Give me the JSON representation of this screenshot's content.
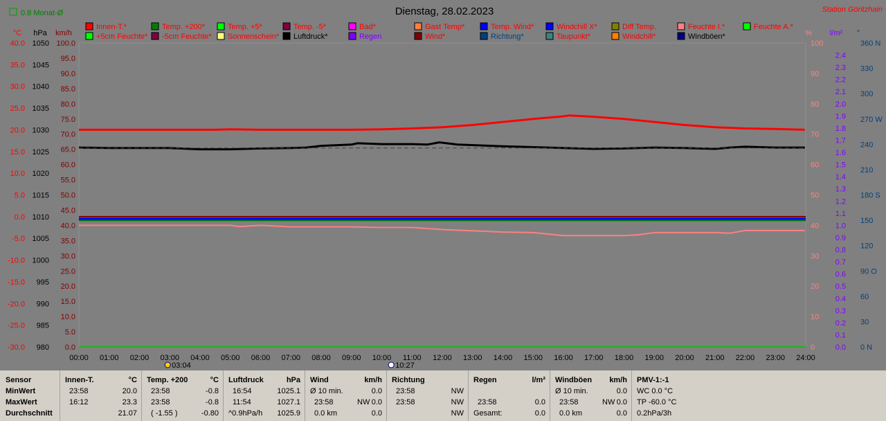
{
  "page": {
    "title": "Dienstag, 28.02.2023",
    "station": "Station Göritzhain",
    "month_avg_label": "0.8 Monat-Ø"
  },
  "colors": {
    "innen": "#ff0000",
    "temp200": "#008000",
    "temp5": "#00ff00",
    "tempm5": "#800040",
    "bad": "#ff00ff",
    "gast": "#ff8040",
    "tempwind": "#0000ff",
    "windchillx": "#0000ff",
    "difftemp": "#808000",
    "feuchtei": "#ff8080",
    "feuchtea": "#00ff00",
    "feuchte5": "#00ff00",
    "feuchtem5": "#800040",
    "sonne": "#ffff80",
    "luftdruck": "#000000",
    "regen": "#8000ff",
    "wind": "#800000",
    "richtung": "#004080",
    "taupunkt": "#408080",
    "windchill": "#ff8000",
    "windboeen": "#000080"
  },
  "legend": {
    "row1": [
      {
        "label": "Innen-T.*",
        "color": "#ff0000",
        "text": "#ff0000"
      },
      {
        "label": "Temp. +200*",
        "color": "#008000",
        "text": "#ff0000"
      },
      {
        "label": "Temp. +5*",
        "color": "#00ff00",
        "text": "#ff0000"
      },
      {
        "label": "Temp. -5*",
        "color": "#800040",
        "text": "#ff0000"
      },
      {
        "label": "Bad*",
        "color": "#ff00ff",
        "text": "#ff0000"
      },
      {
        "label": "Gast Temp*",
        "color": "#ff8040",
        "text": "#ff0000"
      },
      {
        "label": "Temp. Wind*",
        "color": "#0000ff",
        "text": "#ff0000"
      },
      {
        "label": "Windchill X*",
        "color": "#0000ff",
        "text": "#ff0000"
      },
      {
        "label": "Diff Temp.",
        "color": "#808000",
        "text": "#ff0000"
      },
      {
        "label": "Feuchte I.*",
        "color": "#ff8080",
        "text": "#ff0000"
      },
      {
        "label": "Feuchte A.*",
        "color": "#00ff00",
        "text": "#ff0000"
      }
    ],
    "row2": [
      {
        "label": "+5cm Feuchte*",
        "color": "#00ff00",
        "text": "#ff0000"
      },
      {
        "label": "-5cm Feuchte*",
        "color": "#800040",
        "text": "#ff0000"
      },
      {
        "label": "Sonnenschein*",
        "color": "#ffff80",
        "text": "#ff0000"
      },
      {
        "label": "Luftdruck*",
        "color": "#000000",
        "text": "#000000"
      },
      {
        "label": "Regen",
        "color": "#8000ff",
        "text": "#8000ff"
      },
      {
        "label": "Wind*",
        "color": "#800000",
        "text": "#ff0000"
      },
      {
        "label": "Richtung*",
        "color": "#004080",
        "text": "#004080"
      },
      {
        "label": "Taupunkt*",
        "color": "#408080",
        "text": "#ff0000"
      },
      {
        "label": "Windchill*",
        "color": "#ff8000",
        "text": "#ff0000"
      },
      {
        "label": "Windböen*",
        "color": "#000080",
        "text": "#000000"
      }
    ]
  },
  "axes": {
    "celsius_unit": "°C",
    "hpa_unit": "hPa",
    "kmh_unit": "km/h",
    "pct_unit": "%",
    "rain_unit": "l/m²",
    "deg_unit": "°",
    "celsius_ticks": [
      "40.0",
      "35.0",
      "30.0",
      "25.0",
      "20.0",
      "15.0",
      "10.0",
      "5.0",
      "0.0",
      "-5.0",
      "-10.0",
      "-15.0",
      "-20.0",
      "-25.0",
      "-30.0"
    ],
    "hpa_ticks": [
      "1050",
      "1045",
      "1040",
      "1035",
      "1030",
      "1025",
      "1020",
      "1015",
      "1010",
      "1005",
      "1000",
      "995",
      "990",
      "985",
      "980"
    ],
    "kmh_ticks": [
      "100.0",
      "95.0",
      "90.0",
      "85.0",
      "80.0",
      "75.0",
      "70.0",
      "65.0",
      "60.0",
      "55.0",
      "50.0",
      "45.0",
      "40.0",
      "35.0",
      "30.0",
      "25.0",
      "20.0",
      "15.0",
      "10.0",
      "5.0",
      "0.0"
    ],
    "pct_ticks": [
      "100",
      "90",
      "80",
      "70",
      "60",
      "50",
      "40",
      "30",
      "20",
      "10",
      "0"
    ],
    "rain_ticks": [
      "2.4",
      "2.3",
      "2.2",
      "2.1",
      "2.0",
      "1.9",
      "1.8",
      "1.7",
      "1.6",
      "1.5",
      "1.4",
      "1.3",
      "1.2",
      "1.1",
      "1.0",
      "0.9",
      "0.8",
      "0.7",
      "0.6",
      "0.5",
      "0.4",
      "0.3",
      "0.2",
      "0.1",
      "0.0"
    ],
    "deg_ticks": [
      "360 N",
      "330",
      "300",
      "270 W",
      "240",
      "210",
      "180 S",
      "150",
      "120",
      "90 O",
      "60",
      "30",
      "0   N"
    ],
    "time_ticks": [
      "00:00",
      "01:00",
      "02:00",
      "03:00",
      "04:00",
      "05:00",
      "06:00",
      "07:00",
      "08:00",
      "09:00",
      "10:00",
      "11:00",
      "12:00",
      "13:00",
      "14:00",
      "15:00",
      "16:00",
      "17:00",
      "18:00",
      "19:00",
      "20:00",
      "21:00",
      "22:00",
      "23:00",
      "24:00"
    ],
    "moon_times": [
      "03:04",
      "10:27"
    ]
  },
  "chart_data": {
    "type": "line",
    "title": "Dienstag, 28.02.2023",
    "x_unit": "hours",
    "xlim": [
      0,
      24
    ],
    "series": [
      {
        "name": "Innen-T.*",
        "axis": "celsius",
        "ylim": [
          -30,
          40
        ],
        "color": "#ff0000",
        "width": 3,
        "points": [
          [
            0,
            20.0
          ],
          [
            2,
            20.0
          ],
          [
            4.5,
            20.0
          ],
          [
            5,
            20.1
          ],
          [
            6,
            20.0
          ],
          [
            8,
            20.0
          ],
          [
            9,
            20.0
          ],
          [
            10,
            20.1
          ],
          [
            11,
            20.3
          ],
          [
            12,
            20.6
          ],
          [
            13,
            21.1
          ],
          [
            14,
            21.8
          ],
          [
            15,
            22.5
          ],
          [
            16,
            23.1
          ],
          [
            16.2,
            23.3
          ],
          [
            17,
            23.0
          ],
          [
            18,
            22.5
          ],
          [
            19,
            21.8
          ],
          [
            20,
            21.1
          ],
          [
            21,
            20.6
          ],
          [
            22,
            20.3
          ],
          [
            23,
            20.2
          ],
          [
            23.97,
            20.0
          ]
        ]
      },
      {
        "name": "Luftdruck*",
        "axis": "hpa",
        "ylim": [
          980,
          1050
        ],
        "color": "#000000",
        "width": 3,
        "points": [
          [
            0,
            1025.9
          ],
          [
            1,
            1025.8
          ],
          [
            3,
            1025.8
          ],
          [
            4,
            1025.5
          ],
          [
            5,
            1025.5
          ],
          [
            6,
            1025.7
          ],
          [
            7,
            1025.8
          ],
          [
            7.5,
            1025.9
          ],
          [
            8,
            1026.3
          ],
          [
            9,
            1026.6
          ],
          [
            9.2,
            1026.9
          ],
          [
            10,
            1026.7
          ],
          [
            11,
            1026.7
          ],
          [
            11.5,
            1026.6
          ],
          [
            11.9,
            1027.1
          ],
          [
            12.5,
            1026.6
          ],
          [
            14,
            1026.2
          ],
          [
            15,
            1026.0
          ],
          [
            16,
            1025.8
          ],
          [
            17,
            1025.6
          ],
          [
            18,
            1025.7
          ],
          [
            19,
            1025.9
          ],
          [
            20,
            1025.8
          ],
          [
            21,
            1025.6
          ],
          [
            21.5,
            1025.9
          ],
          [
            22,
            1026.1
          ],
          [
            23,
            1025.9
          ],
          [
            23.97,
            1025.9
          ]
        ]
      },
      {
        "name": "Luftdruck Trend",
        "axis": "hpa",
        "ylim": [
          980,
          1050
        ],
        "color": "#404040",
        "width": 1,
        "dashed": true,
        "points": [
          [
            0,
            1025.8
          ],
          [
            24,
            1025.8
          ]
        ]
      },
      {
        "name": "Temp. +200*",
        "axis": "celsius",
        "ylim": [
          -30,
          40
        ],
        "color": "#008000",
        "width": 3,
        "points": [
          [
            0,
            -0.8
          ],
          [
            24,
            -0.8
          ]
        ]
      },
      {
        "name": "Wind*",
        "axis": "celsius",
        "ylim": [
          -30,
          40
        ],
        "color": "#800000",
        "width": 2,
        "points": [
          [
            0,
            0.0
          ],
          [
            24,
            0.0
          ]
        ]
      },
      {
        "name": "Windchill X*",
        "axis": "celsius",
        "ylim": [
          -30,
          40
        ],
        "color": "#0000ff",
        "width": 3,
        "points": [
          [
            0,
            -0.5
          ],
          [
            24,
            -0.5
          ]
        ]
      },
      {
        "name": "Feuchte I.*",
        "axis": "pct",
        "ylim": [
          0,
          100
        ],
        "color": "#ff8080",
        "width": 2,
        "points": [
          [
            0,
            40
          ],
          [
            5,
            40
          ],
          [
            5.3,
            39.6
          ],
          [
            6,
            40
          ],
          [
            7,
            39.5
          ],
          [
            9,
            39.5
          ],
          [
            10,
            39.3
          ],
          [
            11,
            39.3
          ],
          [
            12,
            38.6
          ],
          [
            14,
            37.8
          ],
          [
            15,
            37.6
          ],
          [
            16,
            36.6
          ],
          [
            18,
            36.6
          ],
          [
            18.5,
            36.9
          ],
          [
            19,
            37.6
          ],
          [
            20,
            37.6
          ],
          [
            21,
            37.6
          ],
          [
            21.5,
            37.4
          ],
          [
            22,
            38.3
          ],
          [
            23.97,
            38.3
          ]
        ]
      },
      {
        "name": "Regen",
        "axis": "kmh",
        "ylim": [
          0,
          100
        ],
        "color": "#00c000",
        "width": 1,
        "points": [
          [
            0,
            0.1
          ],
          [
            24,
            0.1
          ]
        ]
      }
    ]
  },
  "stats": {
    "row_labels": {
      "title": "Sensor",
      "min": "MinWert",
      "max": "MaxWert",
      "avg": "Durchschnitt"
    },
    "innen": {
      "title": "Innen-T.",
      "unit": "°C",
      "min_time": "23:58",
      "min_val": "20.0",
      "max_time": "16:12",
      "max_val": "23.3",
      "avg_val": "21.07"
    },
    "temp200": {
      "title": "Temp. +200",
      "unit": "°C",
      "min_time": "23:58",
      "min_val": "-0.8",
      "max_time": "23:58",
      "max_val": "-0.8",
      "avg_extra": "( -1.55 )",
      "avg_val": "-0.80"
    },
    "luftdruck": {
      "title": "Luftdruck",
      "unit": "hPa",
      "min_time": "16:54",
      "min_val": "1025.1",
      "max_time": "11:54",
      "max_val": "1027.1",
      "avg_extra": "^0.9hPa/h",
      "avg_val": "1025.9"
    },
    "wind": {
      "title": "Wind",
      "unit": "km/h",
      "min_label": "Ø 10 min.",
      "min_val": "0.0",
      "max_time": "23:58",
      "max_dir": "NW",
      "max_val": "0.0",
      "avg_extra": "0.0 km",
      "avg_val": "0.0"
    },
    "richtung": {
      "title": "Richtung",
      "min_time": "23:58",
      "min_val": "NW",
      "max_time": "23:58",
      "max_val": "NW",
      "avg_val": "NW"
    },
    "regen": {
      "title": "Regen",
      "unit": "l/m²",
      "max_time": "23:58",
      "max_val": "0.0",
      "avg_label": "Gesamt:",
      "avg_val": "0.0"
    },
    "windboeen": {
      "title": "Windböen",
      "unit": "km/h",
      "min_label": "Ø 10 min.",
      "min_val": "0.0",
      "max_time": "23:58",
      "max_dir": "NW",
      "max_val": "0.0",
      "avg_extra": "0.0 km",
      "avg_val": "0.0"
    },
    "pmv": {
      "title": "PMV-1:-1",
      "min_val": "WC 0.0 °C",
      "max_val": "TP -60.0 °C",
      "avg_val": "0.2hPa/3h"
    }
  }
}
